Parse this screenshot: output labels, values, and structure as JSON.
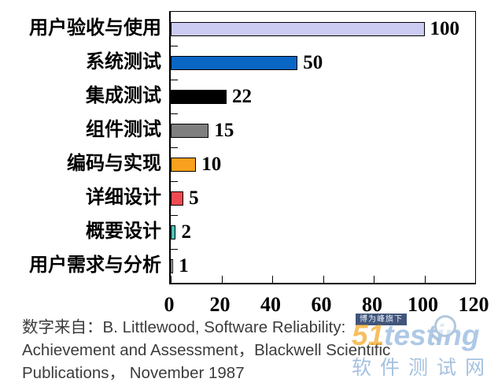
{
  "chart_data": {
    "type": "bar",
    "orientation": "horizontal",
    "title": "",
    "categories": [
      "用户验收与使用",
      "系统测试",
      "集成测试",
      "组件测试",
      "编码与实现",
      "详细设计",
      "概要设计",
      "用户需求与分析"
    ],
    "values": [
      100,
      50,
      22,
      15,
      10,
      5,
      2,
      1
    ],
    "bar_colors": [
      "#CCCCF2",
      "#0A66C4",
      "#000000",
      "#7F7F7F",
      "#F9A11C",
      "#F04B52",
      "#4FC3B8",
      "#FFFFFF"
    ],
    "data_labels": [
      "100",
      "50",
      "22",
      "15",
      "10",
      "5",
      "2",
      "1"
    ],
    "xlim": [
      0,
      120
    ],
    "x_ticks": [
      "0",
      "20",
      "40",
      "60",
      "80",
      "100",
      "120"
    ],
    "grid": false,
    "legend": "none"
  },
  "caption": {
    "lines": [
      "数字来自：B. Littlewood, Software Reliability:",
      "Achievement and Assessment，Blackwell Scientific",
      "Publications， November 1987"
    ]
  },
  "watermark": {
    "badge": "博为峰旗下",
    "logo_prefix": "51",
    "logo_suffix": "testing",
    "subtitle": "软件测试网",
    "logo_blue": "#9DC3E6",
    "logo_orange": "#F5A623"
  }
}
